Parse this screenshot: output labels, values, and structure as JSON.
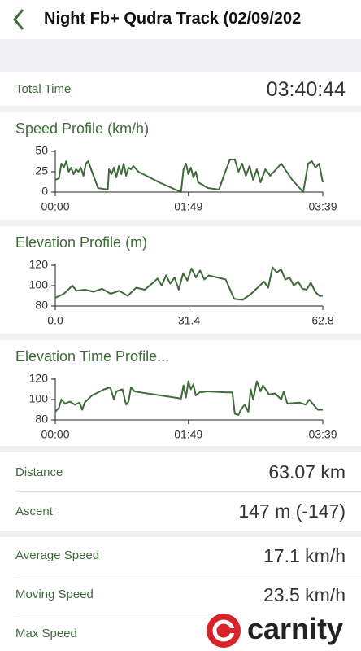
{
  "header": {
    "title": "Night Fb+ Qudra Track (02/09/202"
  },
  "total_time": {
    "label": "Total Time",
    "value": "03:40:44"
  },
  "chart_data": [
    {
      "type": "line",
      "title": "Speed Profile (km/h)",
      "color": "#3f6b3b",
      "x": [
        0,
        3,
        5,
        7,
        9,
        11,
        13,
        15,
        17,
        19,
        21,
        23,
        25,
        27,
        30,
        35,
        43,
        44,
        46,
        48,
        50,
        52,
        54,
        56,
        58,
        60,
        62,
        64,
        68,
        85,
        103,
        105,
        107,
        109,
        111,
        113,
        115,
        117,
        125,
        134,
        138,
        143,
        147,
        150,
        153,
        156,
        159,
        162,
        165,
        168,
        172,
        176,
        185,
        194,
        203,
        207,
        210,
        213,
        216,
        219
      ],
      "values": [
        15,
        17,
        35,
        30,
        38,
        25,
        30,
        22,
        28,
        25,
        30,
        20,
        35,
        38,
        25,
        5,
        3,
        28,
        22,
        30,
        18,
        32,
        22,
        35,
        20,
        30,
        28,
        32,
        25,
        12,
        0,
        28,
        35,
        22,
        30,
        18,
        25,
        12,
        5,
        3,
        20,
        40,
        40,
        25,
        35,
        20,
        32,
        15,
        28,
        12,
        28,
        20,
        35,
        15,
        0,
        35,
        38,
        30,
        35,
        12
      ],
      "xlim": [
        0,
        219
      ],
      "xticks": [
        {
          "value": 0,
          "label": "00:00"
        },
        {
          "value": 109,
          "label": "01:49"
        },
        {
          "value": 219,
          "label": "03:39"
        }
      ],
      "ylim": [
        0,
        50
      ],
      "yticks": [
        0,
        25,
        50
      ]
    },
    {
      "type": "line",
      "title": "Elevation Profile (m)",
      "color": "#3f6b3b",
      "x": [
        0,
        2,
        4,
        5,
        7,
        9,
        11,
        13,
        15,
        17,
        19,
        21,
        23,
        24,
        25,
        26,
        27,
        28,
        29,
        30,
        31,
        32,
        33,
        34,
        35,
        36,
        38,
        40,
        42,
        44,
        46,
        48,
        49,
        50,
        51,
        52,
        53,
        54,
        55,
        56,
        57,
        58,
        59,
        60,
        61,
        62,
        62.8
      ],
      "values": [
        88,
        92,
        100,
        95,
        96,
        94,
        97,
        92,
        95,
        90,
        98,
        96,
        103,
        107,
        100,
        110,
        102,
        108,
        96,
        112,
        105,
        117,
        108,
        115,
        106,
        110,
        108,
        106,
        87,
        86,
        92,
        100,
        104,
        98,
        118,
        113,
        116,
        106,
        108,
        100,
        104,
        97,
        96,
        103,
        94,
        90,
        90
      ],
      "xlim": [
        0,
        62.8
      ],
      "xticks": [
        {
          "value": 0,
          "label": "0.0"
        },
        31.4,
        62.8
      ],
      "ylim": [
        80,
        120
      ],
      "yticks": [
        80,
        100,
        120
      ]
    },
    {
      "type": "line",
      "title": "Elevation Time Profile...",
      "color": "#3f6b3b",
      "x": [
        0,
        3,
        5,
        8,
        12,
        16,
        20,
        22,
        24,
        30,
        40,
        45,
        48,
        50,
        55,
        58,
        60,
        62,
        65,
        70,
        103,
        105,
        107,
        109,
        111,
        113,
        115,
        118,
        125,
        140,
        145,
        147,
        150,
        152,
        155,
        158,
        160,
        162,
        165,
        168,
        170,
        175,
        180,
        185,
        187,
        190,
        200,
        205,
        208,
        212,
        215,
        219
      ],
      "values": [
        88,
        92,
        100,
        96,
        98,
        95,
        97,
        90,
        97,
        104,
        110,
        112,
        100,
        108,
        110,
        95,
        98,
        112,
        108,
        107,
        101,
        114,
        102,
        118,
        110,
        115,
        104,
        107,
        108,
        107,
        107,
        86,
        85,
        90,
        95,
        88,
        110,
        100,
        118,
        108,
        114,
        105,
        106,
        100,
        108,
        96,
        97,
        95,
        100,
        94,
        90,
        90
      ],
      "xlim": [
        0,
        219
      ],
      "xticks": [
        {
          "value": 0,
          "label": "00:00"
        },
        {
          "value": 109,
          "label": "01:49"
        },
        {
          "value": 219,
          "label": "03:39"
        }
      ],
      "ylim": [
        80,
        120
      ],
      "yticks": [
        80,
        100,
        120
      ]
    }
  ],
  "stats": [
    [
      {
        "label": "Distance",
        "value": "63.07 km"
      },
      {
        "label": "Ascent",
        "value": "147 m (-147)"
      }
    ],
    [
      {
        "label": "Average Speed",
        "value": "17.1 km/h"
      },
      {
        "label": "Moving Speed",
        "value": "23.5 km/h"
      },
      {
        "label": "Max Speed"
      }
    ]
  ],
  "watermark": "carnity"
}
